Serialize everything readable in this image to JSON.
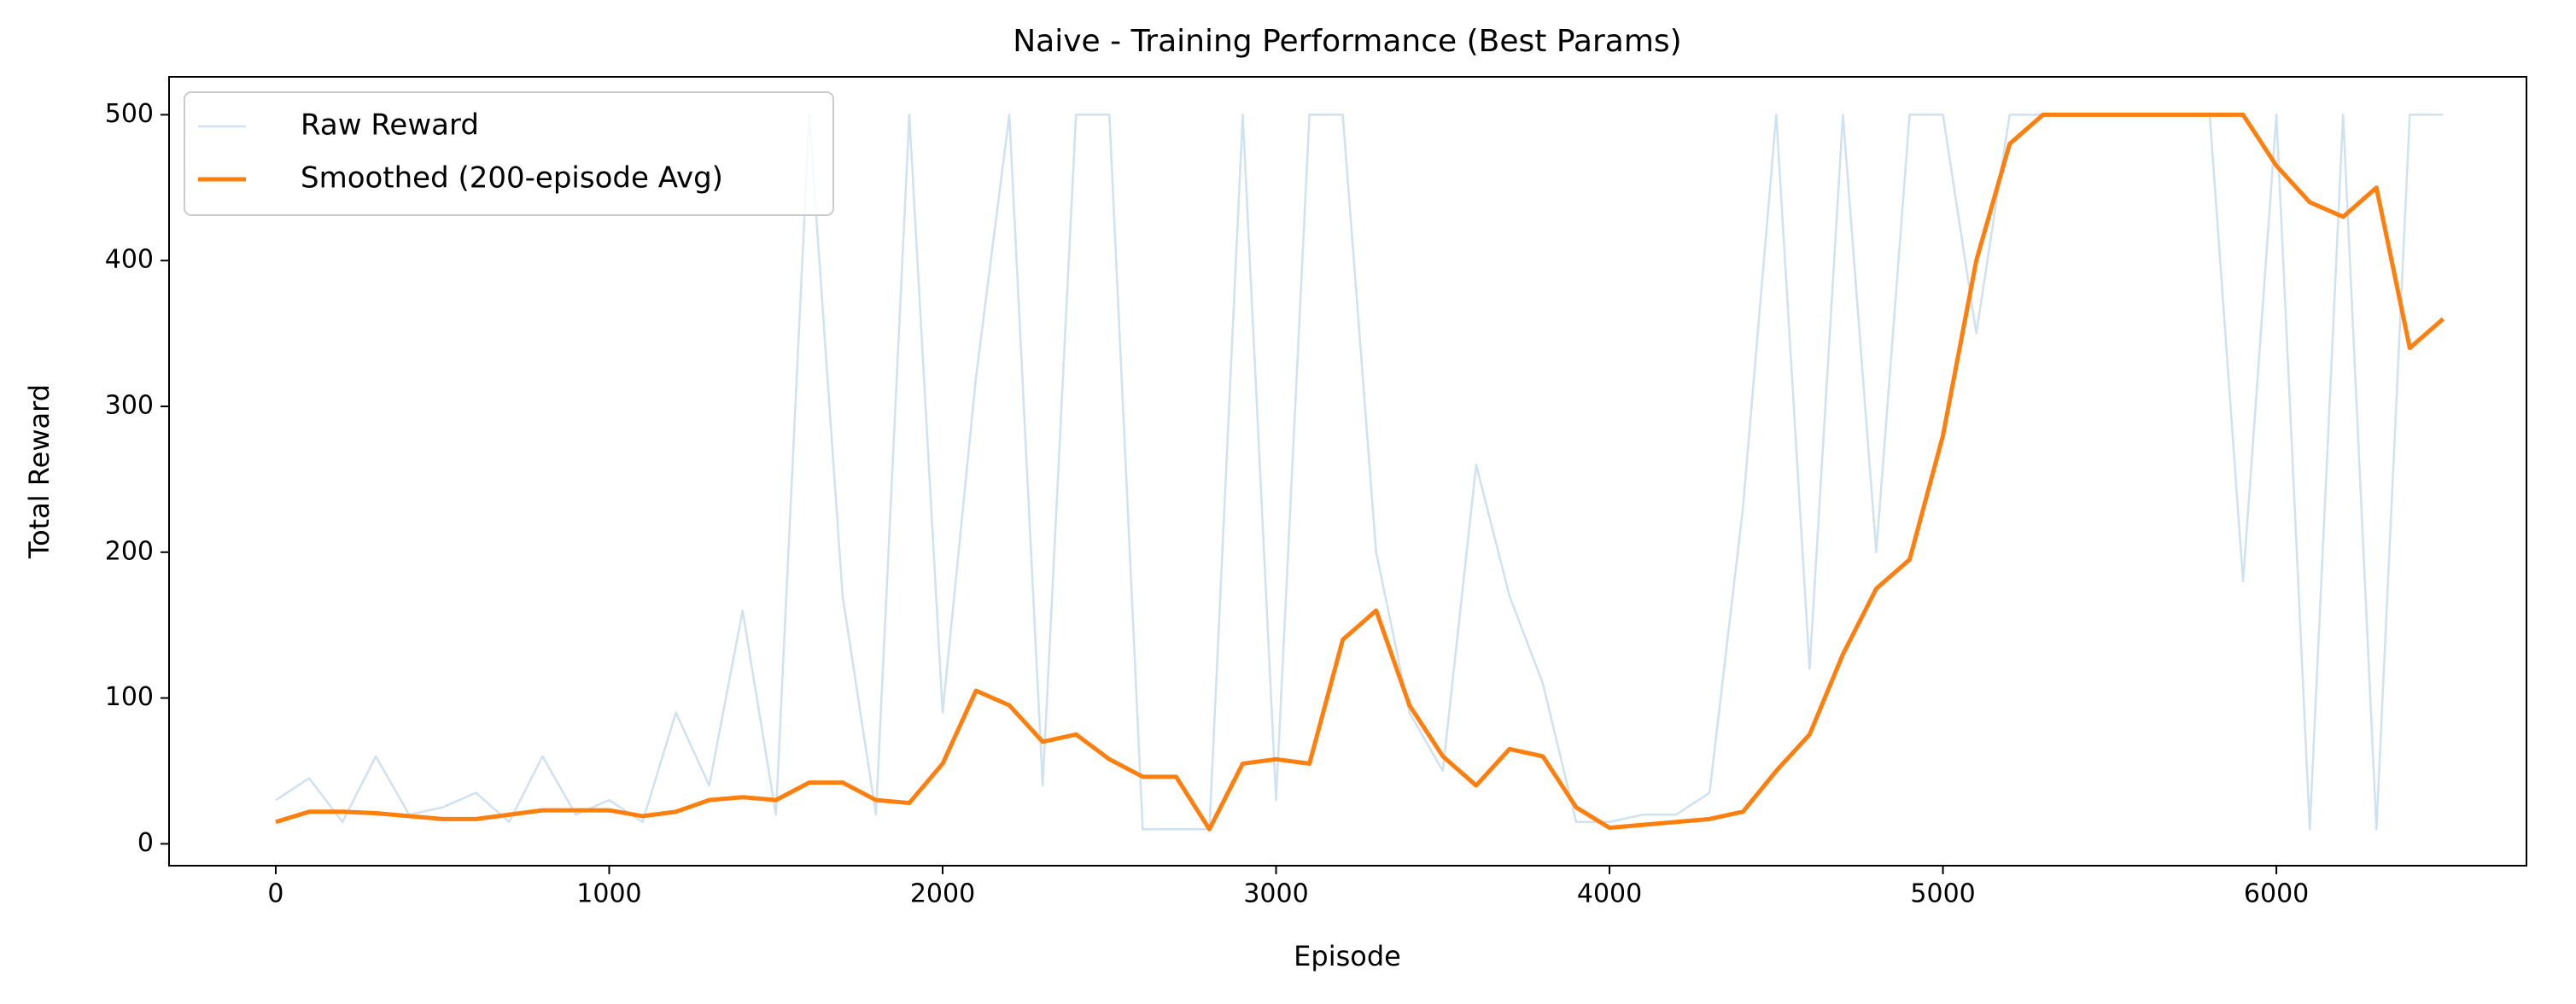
{
  "chart_data": {
    "type": "line",
    "title": "Naive - Training Performance (Best Params)",
    "x_label": "Episode",
    "y_label": "Total Reward",
    "x": [
      0,
      100,
      200,
      300,
      400,
      500,
      600,
      700,
      800,
      900,
      1000,
      1100,
      1200,
      1300,
      1400,
      1500,
      1600,
      1700,
      1800,
      1900,
      2000,
      2100,
      2200,
      2300,
      2400,
      2500,
      2600,
      2700,
      2800,
      2900,
      3000,
      3100,
      3200,
      3300,
      3400,
      3500,
      3600,
      3700,
      3800,
      3900,
      4000,
      4100,
      4200,
      4300,
      4400,
      4500,
      4600,
      4700,
      4800,
      4900,
      5000,
      5100,
      5200,
      5300,
      5400,
      5500,
      5600,
      5700,
      5800,
      5900,
      6000,
      6100,
      6200,
      6300,
      6400,
      6500
    ],
    "series": [
      {
        "name": "Raw Reward",
        "color": "#d0e1ef",
        "width": 2.5,
        "values": [
          30,
          45,
          15,
          60,
          20,
          25,
          35,
          15,
          60,
          20,
          30,
          15,
          90,
          40,
          160,
          20,
          500,
          170,
          20,
          500,
          90,
          320,
          500,
          40,
          500,
          500,
          10,
          10,
          10,
          500,
          30,
          500,
          500,
          200,
          90,
          50,
          260,
          170,
          110,
          15,
          15,
          20,
          20,
          35,
          230,
          500,
          120,
          500,
          200,
          500,
          500,
          350,
          500,
          500,
          500,
          500,
          500,
          500,
          500,
          180,
          500,
          10,
          500,
          10,
          500,
          500
        ]
      },
      {
        "name": "Smoothed (200-episode Avg)",
        "color": "#ff7f0e",
        "width": 5,
        "values": [
          15,
          22,
          22,
          21,
          19,
          17,
          17,
          20,
          23,
          23,
          23,
          19,
          22,
          30,
          32,
          30,
          42,
          42,
          30,
          28,
          55,
          105,
          95,
          70,
          75,
          58,
          46,
          46,
          10,
          55,
          58,
          55,
          140,
          160,
          95,
          60,
          40,
          65,
          60,
          25,
          11,
          13,
          15,
          17,
          22,
          50,
          75,
          130,
          175,
          195,
          280,
          400,
          480,
          500,
          500,
          500,
          500,
          500,
          500,
          500,
          465,
          440,
          430,
          450,
          340,
          360
        ]
      }
    ],
    "xlim": [
      -320,
      6750
    ],
    "ylim": [
      -15,
      526
    ],
    "xticks": [
      0,
      1000,
      2000,
      3000,
      4000,
      5000,
      6000
    ],
    "yticks": [
      0,
      100,
      200,
      300,
      400,
      500
    ],
    "legend": "upper left",
    "grid": false
  }
}
